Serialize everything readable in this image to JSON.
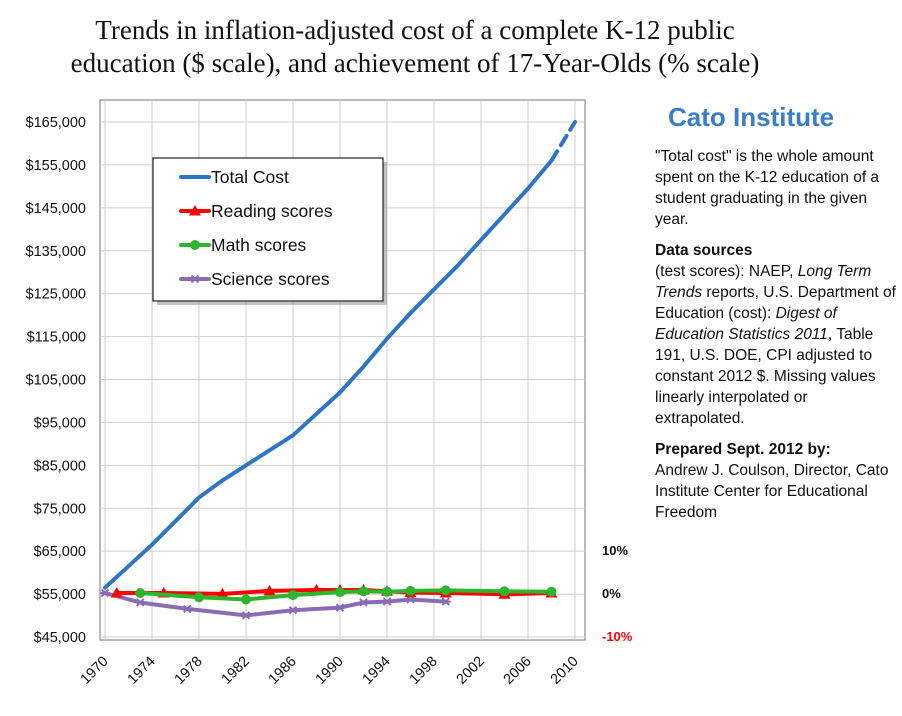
{
  "title_line1": "Trends in inflation-adjusted cost of a complete K-12 public",
  "title_line2": "education ($ scale), and achievement of 17-Year-Olds (% scale)",
  "brand": "Cato Institute",
  "notes": {
    "total_cost": "\"Total cost\" is the whole amount spent on the K-12 education of a student graduating in the given year.",
    "data_sources_heading": "Data sources",
    "ds_1": "(test scores): NAEP, ",
    "ds_2": "Long Term Trends",
    "ds_3": " reports, U.S. Department of Education (cost): ",
    "ds_4": "Digest of Education Statistics 2011",
    "ds_5": ", Table 191, U.S. DOE, CPI adjusted to constant 2012 $.  Missing values linearly interpolated or extrapolated.",
    "prepared_heading": "Prepared Sept. 2012 by:",
    "prepared_body": "Andrew J. Coulson, Director, Cato Institute Center for Educational Freedom"
  },
  "colors": {
    "total_cost": "#2e75c8",
    "reading": "#ff0000",
    "math": "#2db52d",
    "science": "#8b6bb5",
    "right_axis_negative": "#ff0000",
    "grid": "#cfcfcf",
    "plot_border": "#8c8c8c"
  },
  "chart_data": {
    "type": "line",
    "x_ticks": [
      "1970",
      "1974",
      "1978",
      "1982",
      "1986",
      "1990",
      "1994",
      "1998",
      "2002",
      "2006",
      "2010"
    ],
    "xlim": [
      1970,
      2010
    ],
    "y_left": {
      "ticks": [
        "$165,000",
        "$155,000",
        "$145,000",
        "$135,000",
        "$125,000",
        "$115,000",
        "$105,000",
        "$95,000",
        "$85,000",
        "$75,000",
        "$65,000",
        "$55,000",
        "$45,000"
      ],
      "range": [
        45000,
        165000
      ]
    },
    "y_right": {
      "ticks": [
        {
          "label": "10%",
          "value": 10,
          "negative": false
        },
        {
          "label": "0%",
          "value": 0,
          "negative": false
        },
        {
          "label": "-10%",
          "value": -10,
          "negative": true
        }
      ],
      "range": [
        -10,
        10
      ]
    },
    "grid": true,
    "legend_placement": "upper-left",
    "series": [
      {
        "name": "Total Cost",
        "axis": "left",
        "color_key": "total_cost",
        "marker": "none",
        "x": [
          1970,
          1972,
          1974,
          1976,
          1978,
          1980,
          1982,
          1984,
          1986,
          1988,
          1990,
          1992,
          1994,
          1996,
          1998,
          2000,
          2002,
          2004,
          2006,
          2008
        ],
        "values": [
          56500,
          61500,
          66500,
          72000,
          77500,
          81500,
          85000,
          88500,
          92000,
          97000,
          102000,
          108000,
          114500,
          120500,
          126000,
          131500,
          137500,
          143500,
          149500,
          156000
        ],
        "extrapolated": {
          "x": [
            2008,
            2010
          ],
          "values": [
            156000,
            165000
          ]
        }
      },
      {
        "name": "Reading scores",
        "axis": "right",
        "color_key": "reading",
        "marker": "triangle",
        "x": [
          1971,
          1975,
          1980,
          1984,
          1988,
          1990,
          1992,
          1994,
          1996,
          1999,
          2004,
          2008
        ],
        "values": [
          0,
          0,
          -0.2,
          0.5,
          0.7,
          0.7,
          0.7,
          0.4,
          0.1,
          0,
          -0.3,
          0
        ]
      },
      {
        "name": "Math scores",
        "axis": "right",
        "color_key": "math",
        "marker": "circle",
        "x": [
          1973,
          1978,
          1982,
          1986,
          1990,
          1992,
          1994,
          1996,
          1999,
          2004,
          2008
        ],
        "values": [
          0,
          -1,
          -1.5,
          -0.5,
          0.2,
          0.4,
          0.3,
          0.5,
          0.6,
          0.4,
          0.3
        ]
      },
      {
        "name": "Science scores",
        "axis": "right",
        "color_key": "science",
        "marker": "asterisk",
        "x": [
          1970,
          1973,
          1977,
          1982,
          1986,
          1990,
          1992,
          1994,
          1996,
          1999
        ],
        "values": [
          0,
          -2.2,
          -3.7,
          -5.2,
          -4,
          -3.4,
          -2.2,
          -2,
          -1.5,
          -2
        ]
      }
    ]
  }
}
